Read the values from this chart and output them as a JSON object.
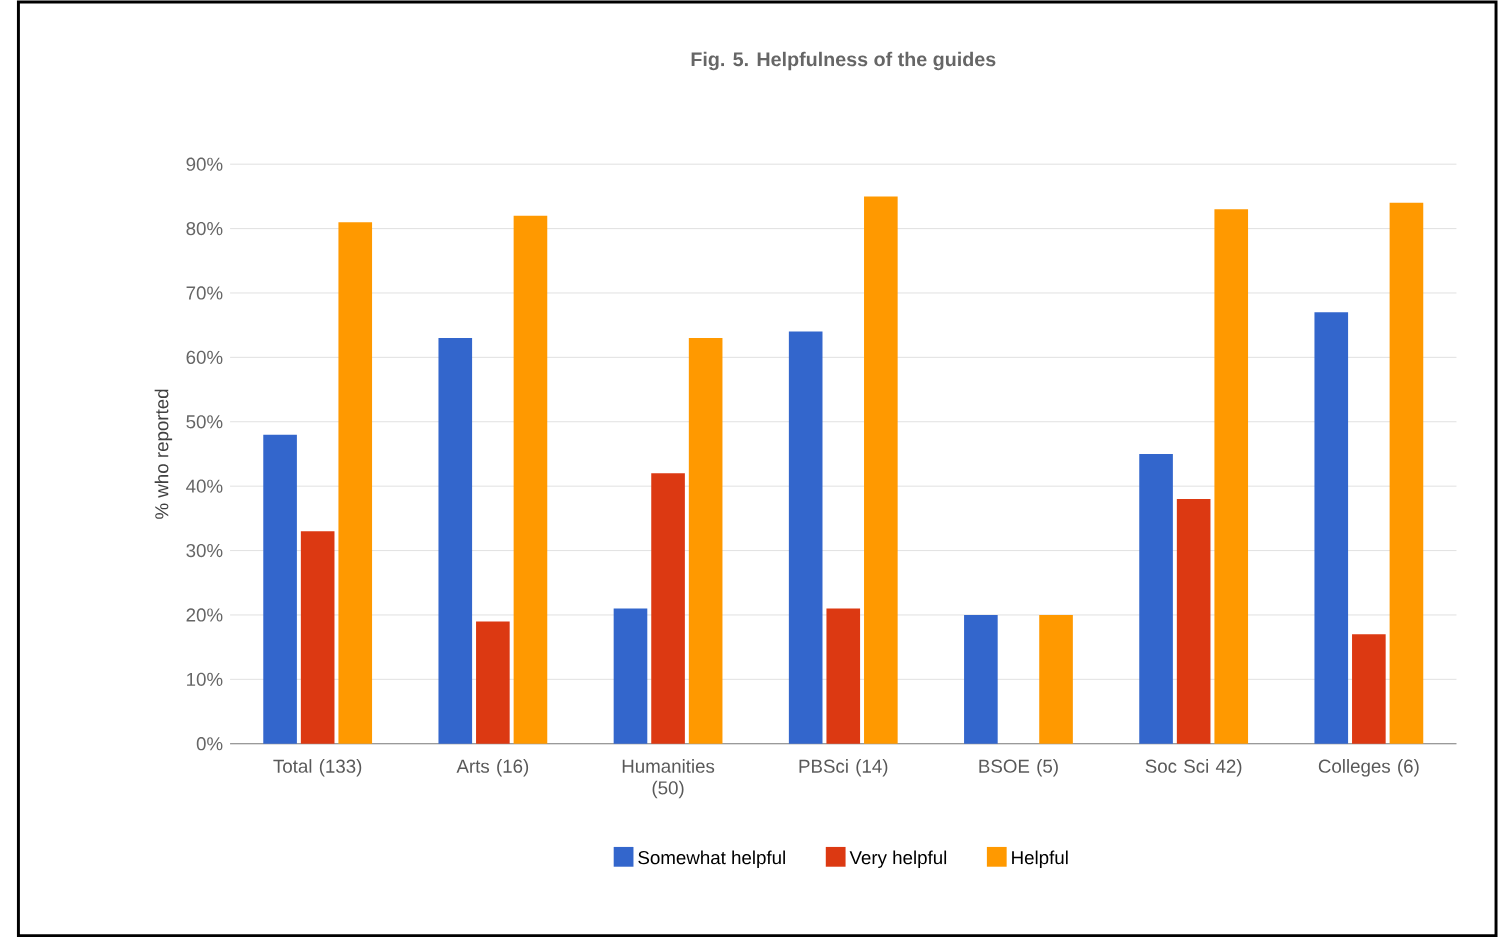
{
  "chart_data": {
    "type": "bar",
    "title": "Fig. 5. Helpfulness of the guides",
    "ylabel": "% who reported",
    "categories": [
      "Total (133)",
      "Arts (16)",
      "Humanities (50)",
      "PBSci (14)",
      "BSOE (5)",
      "Soc Sci 42)",
      "Colleges (6)"
    ],
    "series": [
      {
        "name": "Somewhat helpful",
        "color": "#3366cc",
        "values": [
          48,
          63,
          21,
          64,
          20,
          45,
          67
        ]
      },
      {
        "name": "Very helpful",
        "color": "#dc3912",
        "values": [
          33,
          19,
          42,
          21,
          0,
          38,
          17
        ]
      },
      {
        "name": "Helpful",
        "color": "#ff9900",
        "values": [
          81,
          82,
          63,
          85,
          20,
          83,
          84
        ]
      }
    ],
    "ylim": [
      0,
      90
    ],
    "yticks": [
      {
        "value": 0,
        "label": "0%"
      },
      {
        "value": 10,
        "label": "10%"
      },
      {
        "value": 20,
        "label": "20%"
      },
      {
        "value": 30,
        "label": "30%"
      },
      {
        "value": 40,
        "label": "40%"
      },
      {
        "value": 50,
        "label": "50%"
      },
      {
        "value": 60,
        "label": "60%"
      },
      {
        "value": 70,
        "label": "70%"
      },
      {
        "value": 80,
        "label": "80%"
      },
      {
        "value": 90,
        "label": "90%"
      }
    ],
    "grid": "y",
    "legend": "bottom"
  }
}
